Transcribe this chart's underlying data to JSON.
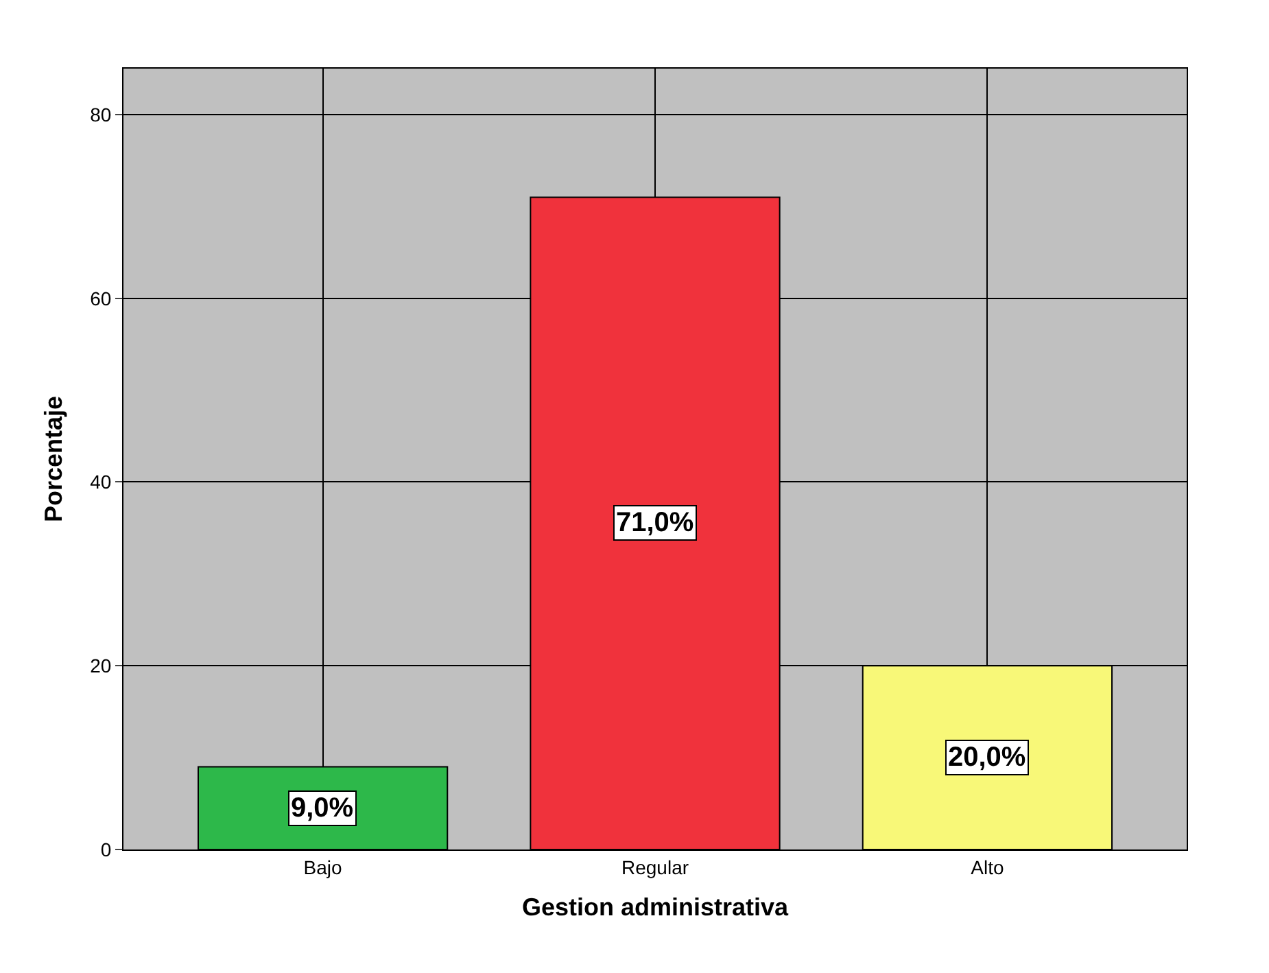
{
  "chart_data": {
    "type": "bar",
    "xlabel": "Gestion administrativa",
    "ylabel": "Porcentaje",
    "categories": [
      "Bajo",
      "Regular",
      "Alto"
    ],
    "values": [
      9.0,
      71.0,
      20.0
    ],
    "colors": [
      "#2db84a",
      "#f0323c",
      "#f8f878"
    ],
    "value_labels": [
      "9,0%",
      "71,0%",
      "20,0%"
    ],
    "ylim": [
      0,
      85
    ],
    "yticks": [
      0,
      20,
      40,
      60,
      80
    ],
    "grid": true
  }
}
